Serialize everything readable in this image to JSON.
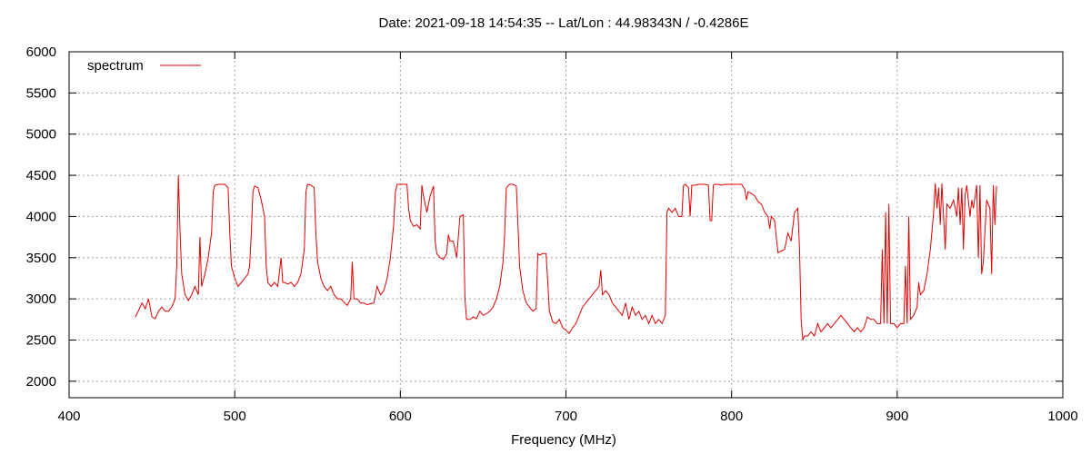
{
  "chart_data": {
    "type": "line",
    "title": "Date: 2021-09-18 14:54:35  --  Lat/Lon : 44.98343N / -0.4286E",
    "xlabel": "Frequency (MHz)",
    "ylabel": "",
    "xlim": [
      400,
      1000
    ],
    "ylim": [
      1800,
      6000
    ],
    "xticks": [
      400,
      500,
      600,
      700,
      800,
      900,
      1000
    ],
    "yticks": [
      2000,
      2500,
      3000,
      3500,
      4000,
      4500,
      5000,
      5500,
      6000
    ],
    "grid": true,
    "legend_position": "top-left",
    "series": [
      {
        "name": "spectrum",
        "color": "#e00000",
        "points": [
          [
            440,
            2780
          ],
          [
            442,
            2860
          ],
          [
            444,
            2950
          ],
          [
            446,
            2880
          ],
          [
            448,
            3000
          ],
          [
            450,
            2780
          ],
          [
            452,
            2760
          ],
          [
            454,
            2850
          ],
          [
            456,
            2900
          ],
          [
            458,
            2850
          ],
          [
            460,
            2850
          ],
          [
            462,
            2900
          ],
          [
            464,
            3000
          ],
          [
            465,
            3400
          ],
          [
            466,
            4500
          ],
          [
            467,
            3800
          ],
          [
            468,
            3300
          ],
          [
            470,
            3050
          ],
          [
            472,
            2980
          ],
          [
            474,
            3050
          ],
          [
            476,
            3150
          ],
          [
            478,
            3050
          ],
          [
            479,
            3750
          ],
          [
            480,
            3150
          ],
          [
            482,
            3300
          ],
          [
            484,
            3500
          ],
          [
            486,
            3800
          ],
          [
            487,
            4300
          ],
          [
            488,
            4380
          ],
          [
            490,
            4390
          ],
          [
            492,
            4390
          ],
          [
            494,
            4390
          ],
          [
            496,
            4350
          ],
          [
            497,
            3800
          ],
          [
            498,
            3400
          ],
          [
            500,
            3250
          ],
          [
            502,
            3150
          ],
          [
            504,
            3200
          ],
          [
            506,
            3250
          ],
          [
            508,
            3300
          ],
          [
            509,
            3400
          ],
          [
            510,
            3800
          ],
          [
            511,
            4300
          ],
          [
            512,
            4370
          ],
          [
            514,
            4350
          ],
          [
            516,
            4200
          ],
          [
            518,
            4000
          ],
          [
            519,
            3400
          ],
          [
            520,
            3200
          ],
          [
            522,
            3150
          ],
          [
            524,
            3200
          ],
          [
            526,
            3150
          ],
          [
            528,
            3500
          ],
          [
            529,
            3200
          ],
          [
            530,
            3200
          ],
          [
            532,
            3180
          ],
          [
            534,
            3200
          ],
          [
            536,
            3150
          ],
          [
            538,
            3200
          ],
          [
            540,
            3300
          ],
          [
            542,
            3600
          ],
          [
            543,
            4300
          ],
          [
            544,
            4390
          ],
          [
            546,
            4380
          ],
          [
            548,
            4350
          ],
          [
            549,
            3800
          ],
          [
            550,
            3450
          ],
          [
            552,
            3250
          ],
          [
            554,
            3150
          ],
          [
            556,
            3100
          ],
          [
            558,
            3150
          ],
          [
            560,
            3050
          ],
          [
            562,
            3000
          ],
          [
            564,
            3000
          ],
          [
            566,
            2960
          ],
          [
            568,
            2920
          ],
          [
            570,
            3000
          ],
          [
            571,
            3450
          ],
          [
            572,
            3000
          ],
          [
            574,
            3000
          ],
          [
            576,
            2950
          ],
          [
            578,
            2950
          ],
          [
            580,
            2930
          ],
          [
            582,
            2940
          ],
          [
            584,
            2950
          ],
          [
            586,
            3150
          ],
          [
            588,
            3050
          ],
          [
            590,
            3100
          ],
          [
            592,
            3250
          ],
          [
            594,
            3500
          ],
          [
            596,
            3900
          ],
          [
            597,
            4300
          ],
          [
            598,
            4390
          ],
          [
            600,
            4390
          ],
          [
            602,
            4390
          ],
          [
            604,
            4390
          ],
          [
            605,
            4100
          ],
          [
            606,
            3950
          ],
          [
            608,
            3880
          ],
          [
            610,
            3900
          ],
          [
            612,
            3850
          ],
          [
            613,
            4380
          ],
          [
            614,
            4250
          ],
          [
            616,
            4050
          ],
          [
            618,
            4250
          ],
          [
            620,
            4370
          ],
          [
            621,
            3700
          ],
          [
            622,
            3550
          ],
          [
            624,
            3500
          ],
          [
            626,
            3480
          ],
          [
            628,
            3550
          ],
          [
            629,
            3780
          ],
          [
            630,
            3700
          ],
          [
            632,
            3700
          ],
          [
            634,
            3500
          ],
          [
            636,
            4000
          ],
          [
            638,
            4020
          ],
          [
            639,
            3000
          ],
          [
            640,
            2750
          ],
          [
            642,
            2750
          ],
          [
            644,
            2780
          ],
          [
            646,
            2760
          ],
          [
            648,
            2850
          ],
          [
            650,
            2800
          ],
          [
            652,
            2820
          ],
          [
            654,
            2850
          ],
          [
            656,
            2900
          ],
          [
            658,
            3000
          ],
          [
            660,
            3150
          ],
          [
            662,
            3450
          ],
          [
            663,
            3800
          ],
          [
            664,
            4350
          ],
          [
            666,
            4390
          ],
          [
            668,
            4390
          ],
          [
            670,
            4370
          ],
          [
            671,
            3900
          ],
          [
            672,
            3400
          ],
          [
            674,
            3100
          ],
          [
            676,
            2950
          ],
          [
            678,
            2900
          ],
          [
            680,
            2850
          ],
          [
            682,
            2880
          ],
          [
            683,
            3550
          ],
          [
            684,
            3530
          ],
          [
            686,
            3550
          ],
          [
            688,
            3550
          ],
          [
            689,
            3200
          ],
          [
            690,
            2850
          ],
          [
            692,
            2720
          ],
          [
            694,
            2700
          ],
          [
            696,
            2750
          ],
          [
            698,
            2650
          ],
          [
            700,
            2620
          ],
          [
            702,
            2580
          ],
          [
            704,
            2650
          ],
          [
            706,
            2700
          ],
          [
            708,
            2800
          ],
          [
            710,
            2900
          ],
          [
            712,
            2950
          ],
          [
            714,
            3000
          ],
          [
            716,
            3050
          ],
          [
            718,
            3100
          ],
          [
            720,
            3150
          ],
          [
            721,
            3350
          ],
          [
            722,
            3050
          ],
          [
            724,
            3100
          ],
          [
            726,
            3050
          ],
          [
            728,
            2950
          ],
          [
            730,
            2900
          ],
          [
            732,
            2850
          ],
          [
            734,
            2800
          ],
          [
            736,
            2950
          ],
          [
            738,
            2750
          ],
          [
            740,
            2900
          ],
          [
            742,
            2800
          ],
          [
            744,
            2850
          ],
          [
            746,
            2750
          ],
          [
            748,
            2800
          ],
          [
            750,
            2700
          ],
          [
            752,
            2800
          ],
          [
            754,
            2700
          ],
          [
            756,
            2750
          ],
          [
            758,
            2700
          ],
          [
            760,
            2800
          ],
          [
            761,
            4050
          ],
          [
            762,
            4100
          ],
          [
            764,
            4050
          ],
          [
            766,
            4100
          ],
          [
            768,
            4000
          ],
          [
            770,
            4000
          ],
          [
            771,
            4380
          ],
          [
            772,
            4390
          ],
          [
            774,
            4350
          ],
          [
            775,
            4000
          ],
          [
            776,
            4380
          ],
          [
            778,
            4380
          ],
          [
            780,
            4390
          ],
          [
            782,
            4390
          ],
          [
            784,
            4390
          ],
          [
            786,
            4380
          ],
          [
            787,
            3950
          ],
          [
            788,
            3950
          ],
          [
            789,
            4380
          ],
          [
            790,
            4390
          ],
          [
            792,
            4390
          ],
          [
            794,
            4380
          ],
          [
            796,
            4390
          ],
          [
            798,
            4390
          ],
          [
            800,
            4390
          ],
          [
            802,
            4390
          ],
          [
            804,
            4390
          ],
          [
            806,
            4390
          ],
          [
            808,
            4330
          ],
          [
            809,
            4200
          ],
          [
            810,
            4300
          ],
          [
            812,
            4280
          ],
          [
            814,
            4250
          ],
          [
            816,
            4180
          ],
          [
            818,
            4150
          ],
          [
            820,
            4050
          ],
          [
            822,
            4000
          ],
          [
            823,
            3850
          ],
          [
            824,
            4000
          ],
          [
            826,
            3950
          ],
          [
            828,
            3560
          ],
          [
            830,
            3580
          ],
          [
            832,
            3600
          ],
          [
            834,
            3800
          ],
          [
            836,
            3700
          ],
          [
            838,
            4050
          ],
          [
            840,
            4100
          ],
          [
            841,
            3600
          ],
          [
            842,
            2750
          ],
          [
            843,
            2500
          ],
          [
            844,
            2550
          ],
          [
            846,
            2550
          ],
          [
            848,
            2600
          ],
          [
            850,
            2550
          ],
          [
            852,
            2700
          ],
          [
            854,
            2600
          ],
          [
            856,
            2650
          ],
          [
            858,
            2700
          ],
          [
            860,
            2650
          ],
          [
            862,
            2700
          ],
          [
            864,
            2750
          ],
          [
            866,
            2800
          ],
          [
            868,
            2750
          ],
          [
            870,
            2700
          ],
          [
            872,
            2650
          ],
          [
            874,
            2600
          ],
          [
            876,
            2650
          ],
          [
            878,
            2600
          ],
          [
            880,
            2650
          ],
          [
            882,
            2780
          ],
          [
            884,
            2750
          ],
          [
            886,
            2750
          ],
          [
            888,
            2700
          ],
          [
            890,
            2700
          ],
          [
            891,
            3600
          ],
          [
            892,
            2700
          ],
          [
            893,
            4050
          ],
          [
            894,
            2700
          ],
          [
            895,
            4150
          ],
          [
            896,
            2700
          ],
          [
            898,
            2700
          ],
          [
            900,
            2650
          ],
          [
            902,
            2700
          ],
          [
            904,
            2700
          ],
          [
            905,
            3400
          ],
          [
            906,
            2700
          ],
          [
            907,
            4000
          ],
          [
            908,
            2750
          ],
          [
            910,
            2800
          ],
          [
            912,
            2900
          ],
          [
            913,
            3200
          ],
          [
            914,
            3050
          ],
          [
            916,
            3100
          ],
          [
            918,
            3300
          ],
          [
            920,
            3600
          ],
          [
            922,
            4050
          ],
          [
            923,
            4400
          ],
          [
            924,
            4100
          ],
          [
            925,
            4350
          ],
          [
            926,
            3900
          ],
          [
            927,
            4400
          ],
          [
            928,
            4000
          ],
          [
            929,
            3600
          ],
          [
            930,
            4150
          ],
          [
            932,
            4100
          ],
          [
            934,
            4200
          ],
          [
            936,
            4000
          ],
          [
            937,
            4350
          ],
          [
            938,
            3900
          ],
          [
            939,
            4350
          ],
          [
            940,
            3600
          ],
          [
            941,
            4250
          ],
          [
            942,
            4380
          ],
          [
            944,
            4000
          ],
          [
            945,
            4200
          ],
          [
            946,
            4100
          ],
          [
            948,
            4380
          ],
          [
            949,
            3500
          ],
          [
            950,
            4380
          ],
          [
            951,
            3300
          ],
          [
            952,
            3450
          ],
          [
            954,
            4200
          ],
          [
            956,
            4100
          ],
          [
            957,
            3300
          ],
          [
            958,
            4380
          ],
          [
            959,
            3900
          ],
          [
            960,
            4370
          ]
        ]
      }
    ]
  }
}
